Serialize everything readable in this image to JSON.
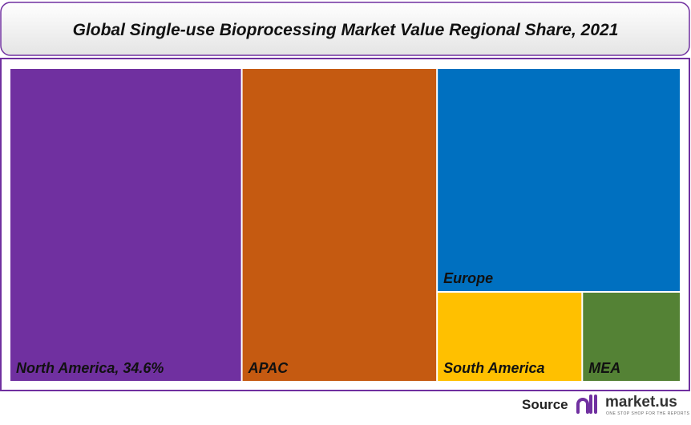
{
  "chart_data": {
    "type": "treemap",
    "title": "Global Single-use Bioprocessing Market Value Regional Share, 2021",
    "categories": [
      "North America, 34.6%",
      "APAC",
      "Europe",
      "South America",
      "MEA"
    ],
    "values": [
      34.6,
      29.1,
      25.9,
      6.2,
      4.2
    ],
    "colors": [
      "#7030a0",
      "#c55a11",
      "#0070c0",
      "#ffc000",
      "#548235"
    ]
  },
  "footer": {
    "source": "Source",
    "brand": "market.us",
    "tagline": "ONE STOP SHOP FOR THE REPORTS"
  }
}
